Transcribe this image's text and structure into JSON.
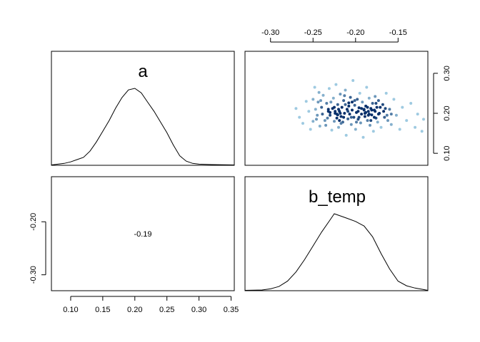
{
  "chart_data": [
    {
      "panel": "top-left",
      "type": "line",
      "title": "a",
      "x_range": [
        0.07,
        0.355
      ],
      "x_ticks": [
        0.1,
        0.15,
        0.2,
        0.25,
        0.3,
        0.35
      ],
      "x_tick_labels": [
        "0.10",
        "0.15",
        "0.20",
        "0.25",
        "0.30",
        "0.35"
      ],
      "x": [
        0.07,
        0.09,
        0.1,
        0.11,
        0.12,
        0.13,
        0.14,
        0.15,
        0.16,
        0.17,
        0.18,
        0.19,
        0.2,
        0.21,
        0.22,
        0.23,
        0.24,
        0.25,
        0.26,
        0.27,
        0.28,
        0.29,
        0.3,
        0.32,
        0.355
      ],
      "y": [
        0.0,
        0.02,
        0.04,
        0.07,
        0.1,
        0.18,
        0.3,
        0.44,
        0.58,
        0.74,
        0.88,
        0.98,
        1.0,
        0.94,
        0.82,
        0.7,
        0.56,
        0.42,
        0.26,
        0.12,
        0.05,
        0.02,
        0.01,
        0.005,
        0.0
      ]
    },
    {
      "panel": "top-right",
      "type": "scatter",
      "x_range": [
        -0.33,
        -0.115
      ],
      "y_range": [
        0.07,
        0.355
      ],
      "x_ticks": [
        -0.3,
        -0.25,
        -0.2,
        -0.15
      ],
      "x_tick_labels": [
        "-0.30",
        "-0.25",
        "-0.20",
        "-0.15"
      ],
      "y_ticks": [
        0.1,
        0.2,
        0.3
      ],
      "y_tick_labels": [
        "0.10",
        "0.20",
        "0.30"
      ],
      "x_axis_position": "top",
      "y_axis_position": "right",
      "point_color_light": "#9ecae1",
      "point_color_dark": "#08306b",
      "points": [
        [
          -0.262,
          0.175
        ],
        [
          -0.255,
          0.205
        ],
        [
          -0.25,
          0.235
        ],
        [
          -0.248,
          0.265
        ],
        [
          -0.245,
          0.195
        ],
        [
          -0.242,
          0.168
        ],
        [
          -0.24,
          0.215
        ],
        [
          -0.238,
          0.245
        ],
        [
          -0.236,
          0.182
        ],
        [
          -0.234,
          0.225
        ],
        [
          -0.232,
          0.205
        ],
        [
          -0.231,
          0.262
        ],
        [
          -0.23,
          0.195
        ],
        [
          -0.228,
          0.158
        ],
        [
          -0.227,
          0.212
        ],
        [
          -0.226,
          0.238
        ],
        [
          -0.225,
          0.18
        ],
        [
          -0.224,
          0.2
        ],
        [
          -0.223,
          0.272
        ],
        [
          -0.222,
          0.188
        ],
        [
          -0.221,
          0.222
        ],
        [
          -0.22,
          0.165
        ],
        [
          -0.219,
          0.205
        ],
        [
          -0.218,
          0.248
        ],
        [
          -0.217,
          0.192
        ],
        [
          -0.216,
          0.215
        ],
        [
          -0.215,
          0.178
        ],
        [
          -0.214,
          0.232
        ],
        [
          -0.213,
          0.2
        ],
        [
          -0.212,
          0.258
        ],
        [
          -0.211,
          0.145
        ],
        [
          -0.21,
          0.21
        ],
        [
          -0.209,
          0.186
        ],
        [
          -0.208,
          0.226
        ],
        [
          -0.207,
          0.198
        ],
        [
          -0.206,
          0.24
        ],
        [
          -0.205,
          0.172
        ],
        [
          -0.204,
          0.208
        ],
        [
          -0.203,
          0.282
        ],
        [
          -0.202,
          0.19
        ],
        [
          -0.201,
          0.22
        ],
        [
          -0.2,
          0.16
        ],
        [
          -0.199,
          0.202
        ],
        [
          -0.198,
          0.235
        ],
        [
          -0.197,
          0.185
        ],
        [
          -0.196,
          0.214
        ],
        [
          -0.195,
          0.25
        ],
        [
          -0.194,
          0.176
        ],
        [
          -0.193,
          0.198
        ],
        [
          -0.192,
          0.228
        ],
        [
          -0.191,
          0.14
        ],
        [
          -0.19,
          0.208
        ],
        [
          -0.189,
          0.192
        ],
        [
          -0.188,
          0.218
        ],
        [
          -0.187,
          0.265
        ],
        [
          -0.186,
          0.182
        ],
        [
          -0.185,
          0.205
        ],
        [
          -0.184,
          0.238
        ],
        [
          -0.183,
          0.17
        ],
        [
          -0.182,
          0.212
        ],
        [
          -0.181,
          0.196
        ],
        [
          -0.18,
          0.225
        ],
        [
          -0.179,
          0.155
        ],
        [
          -0.178,
          0.208
        ],
        [
          -0.177,
          0.242
        ],
        [
          -0.176,
          0.188
        ],
        [
          -0.175,
          0.215
        ],
        [
          -0.174,
          0.178
        ],
        [
          -0.173,
          0.232
        ],
        [
          -0.172,
          0.2
        ],
        [
          -0.17,
          0.165
        ],
        [
          -0.168,
          0.222
        ],
        [
          -0.166,
          0.19
        ],
        [
          -0.164,
          0.25
        ],
        [
          -0.162,
          0.182
        ],
        [
          -0.16,
          0.21
        ],
        [
          -0.158,
          0.172
        ],
        [
          -0.155,
          0.235
        ],
        [
          -0.152,
          0.195
        ],
        [
          -0.148,
          0.16
        ],
        [
          -0.145,
          0.215
        ],
        [
          -0.14,
          0.182
        ],
        [
          -0.135,
          0.225
        ],
        [
          -0.13,
          0.165
        ],
        [
          -0.127,
          0.198
        ],
        [
          -0.122,
          0.155
        ],
        [
          -0.12,
          0.185
        ],
        [
          -0.27,
          0.212
        ],
        [
          -0.266,
          0.19
        ],
        [
          -0.258,
          0.23
        ],
        [
          -0.253,
          0.16
        ],
        [
          -0.247,
          0.21
        ],
        [
          -0.243,
          0.252
        ],
        [
          -0.239,
          0.198
        ],
        [
          -0.235,
          0.17
        ],
        [
          -0.229,
          0.228
        ],
        [
          -0.225,
          0.215
        ],
        [
          -0.221,
          0.196
        ],
        [
          -0.217,
          0.175
        ],
        [
          -0.213,
          0.244
        ],
        [
          -0.209,
          0.205
        ],
        [
          -0.205,
          0.19
        ],
        [
          -0.201,
          0.232
        ],
        [
          -0.197,
          0.205
        ],
        [
          -0.193,
          0.212
        ],
        [
          -0.189,
          0.2
        ],
        [
          -0.185,
          0.195
        ],
        [
          -0.181,
          0.208
        ],
        [
          -0.177,
          0.205
        ],
        [
          -0.173,
          0.198
        ],
        [
          -0.224,
          0.205
        ],
        [
          -0.222,
          0.198
        ],
        [
          -0.22,
          0.21
        ],
        [
          -0.218,
          0.2
        ],
        [
          -0.19,
          0.21
        ],
        [
          -0.188,
          0.202
        ],
        [
          -0.186,
          0.215
        ],
        [
          -0.184,
          0.198
        ],
        [
          -0.232,
          0.21
        ],
        [
          -0.23,
          0.202
        ],
        [
          -0.244,
          0.228
        ],
        [
          -0.241,
          0.232
        ],
        [
          -0.212,
          0.222
        ],
        [
          -0.208,
          0.218
        ],
        [
          -0.204,
          0.228
        ],
        [
          -0.196,
          0.19
        ],
        [
          -0.176,
          0.225
        ],
        [
          -0.171,
          0.215
        ],
        [
          -0.167,
          0.205
        ],
        [
          -0.163,
          0.195
        ],
        [
          -0.25,
          0.18
        ],
        [
          -0.246,
          0.185
        ],
        [
          -0.233,
          0.188
        ],
        [
          -0.219,
          0.182
        ],
        [
          -0.214,
          0.19
        ],
        [
          -0.199,
          0.178
        ],
        [
          -0.182,
          0.182
        ],
        [
          -0.178,
          0.19
        ],
        [
          -0.165,
          0.212
        ],
        [
          -0.158,
          0.198
        ]
      ]
    },
    {
      "panel": "bottom-left",
      "type": "table",
      "correlation_label": "-0.19",
      "y_range": [
        -0.33,
        -0.115
      ],
      "y_ticks": [
        -0.2,
        -0.3
      ],
      "y_tick_labels": [
        "-0.20",
        "-0.30"
      ],
      "x_range": [
        0.07,
        0.355
      ],
      "x_ticks": [
        0.1,
        0.15,
        0.2,
        0.25,
        0.3,
        0.35
      ],
      "x_tick_labels": [
        "0.10",
        "0.15",
        "0.20",
        "0.25",
        "0.30",
        "0.35"
      ]
    },
    {
      "panel": "bottom-right",
      "type": "line",
      "title": "b_temp",
      "x_range": [
        -0.33,
        -0.115
      ],
      "x": [
        -0.33,
        -0.31,
        -0.3,
        -0.29,
        -0.28,
        -0.27,
        -0.26,
        -0.25,
        -0.24,
        -0.23,
        -0.225,
        -0.22,
        -0.21,
        -0.2,
        -0.19,
        -0.18,
        -0.17,
        -0.16,
        -0.15,
        -0.14,
        -0.13,
        -0.12,
        -0.115
      ],
      "y": [
        0.0,
        0.005,
        0.02,
        0.05,
        0.12,
        0.24,
        0.4,
        0.58,
        0.76,
        0.92,
        1.0,
        0.98,
        0.94,
        0.9,
        0.84,
        0.7,
        0.48,
        0.28,
        0.12,
        0.06,
        0.03,
        0.01,
        0.0
      ]
    }
  ]
}
